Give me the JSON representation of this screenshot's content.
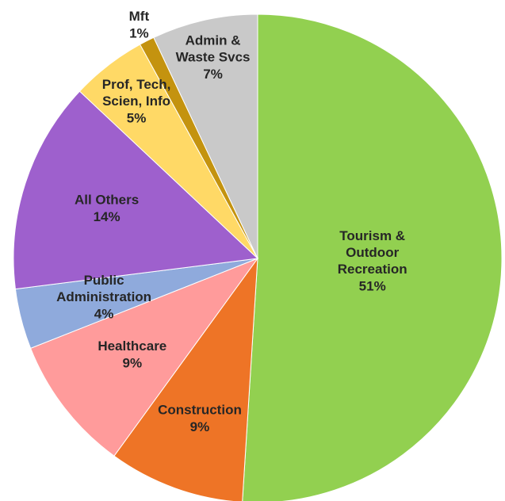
{
  "chart_data": {
    "type": "pie",
    "categories": [
      "Tourism &\nOutdoor\nRecreation",
      "Construction",
      "Healthcare",
      "Public\nAdministration",
      "All Others",
      "Prof, Tech,\nScien, Info",
      "Mft",
      "Admin &\nWaste Svcs"
    ],
    "values": [
      51,
      9,
      9,
      4,
      14,
      5,
      1,
      7
    ],
    "value_labels": [
      "51%",
      "9%",
      "9%",
      "4%",
      "14%",
      "5%",
      "1%",
      "7%"
    ],
    "colors": [
      "#92d050",
      "#ee7426",
      "#ff9b9b",
      "#8faadc",
      "#9e60cd",
      "#ffd966",
      "#c4930f",
      "#c9c9c9"
    ]
  }
}
